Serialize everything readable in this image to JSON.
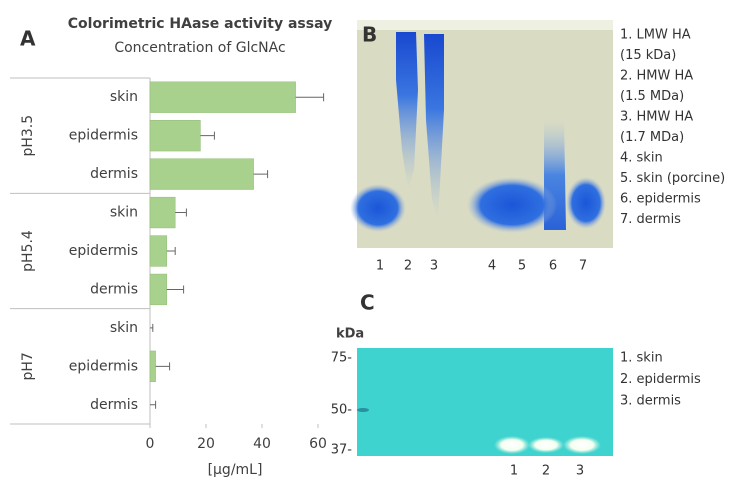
{
  "chart_data": {
    "type": "bar",
    "orientation": "horizontal",
    "panel": "A",
    "title": "Colorimetric HAase activity assay",
    "subtitle": "Concentration of GlcNAc",
    "xlabel": "[μg/mL]",
    "groups": [
      "pH3.5",
      "pH5.4",
      "pH7"
    ],
    "categories": [
      "skin",
      "epidermis",
      "dermis",
      "skin",
      "epidermis",
      "dermis",
      "skin",
      "epidermis",
      "dermis"
    ],
    "values": [
      52,
      18,
      37,
      9,
      6,
      6,
      0,
      2,
      0
    ],
    "errors": [
      10,
      5,
      5,
      4,
      3,
      6,
      1,
      5,
      2
    ],
    "color": "#a9d18e",
    "xlim": [
      0,
      65
    ],
    "xticks": [
      0,
      20,
      40,
      60
    ]
  },
  "gel_b": {
    "panel": "B",
    "lanes": [
      "1",
      "2",
      "3",
      "4",
      "5",
      "6",
      "7"
    ],
    "legend": [
      "1. LMW HA",
      "(15 kDa)",
      "2. HMW HA",
      "(1.5 MDa)",
      "3. HMW HA",
      "(1.7 MDa)",
      "4. skin",
      "5. skin (porcine)",
      "6. epidermis",
      "7. dermis"
    ]
  },
  "gel_c": {
    "panel": "C",
    "unit": "kDa",
    "markers": [
      "75-",
      "50-",
      "37-"
    ],
    "lanes": [
      "1",
      "2",
      "3"
    ],
    "legend": [
      "1. skin",
      "2. epidermis",
      "3. dermis"
    ]
  }
}
